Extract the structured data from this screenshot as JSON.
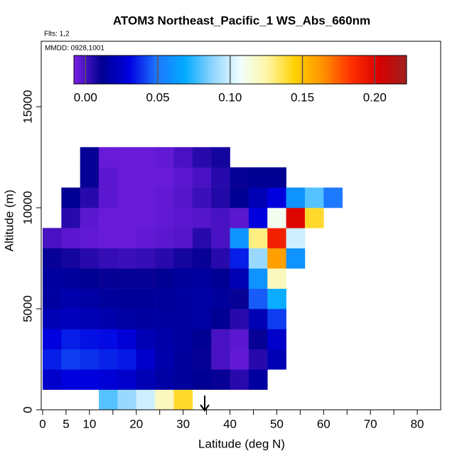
{
  "chart_data": {
    "type": "heatmap",
    "title": "ATOM3 Northeast_Pacific_1 WS_Abs_660nm",
    "subtitle": "Flts: 1,2",
    "annotation": "MMDD: 0928,1001",
    "x_label": "Latitude (deg N)",
    "y_label": "Altitude (m)",
    "xlim": [
      0,
      85
    ],
    "ylim": [
      0,
      18240
    ],
    "xticks": [
      0,
      5,
      10,
      20,
      30,
      40,
      50,
      60,
      70,
      80
    ],
    "xminor_ticks": [
      15,
      25,
      35,
      45,
      55,
      65,
      75
    ],
    "yticks": [
      0,
      5000,
      10000,
      15000
    ],
    "x_edges": [
      0,
      4,
      8,
      12,
      16,
      20,
      24,
      28,
      32,
      36,
      40,
      44,
      48,
      52,
      56,
      60,
      64
    ],
    "y_edges": [
      0,
      1000,
      2000,
      3000,
      4000,
      5000,
      6000,
      7000,
      8000,
      9000,
      10000,
      11000,
      12000,
      13000
    ],
    "z": [
      [
        null,
        null,
        null,
        0.08,
        0.09,
        0.1,
        0.12,
        0.14,
        null,
        null,
        null,
        null,
        null,
        null,
        null,
        null
      ],
      [
        0.025,
        0.03,
        0.03,
        0.028,
        0.025,
        0.02,
        0.016,
        0.014,
        0.012,
        0.01,
        0.005,
        0.015,
        null,
        null,
        null,
        null
      ],
      [
        0.035,
        0.04,
        0.038,
        0.036,
        0.034,
        0.025,
        0.018,
        0.014,
        0.01,
        0.0,
        -0.004,
        0.005,
        0.02,
        null,
        null,
        null
      ],
      [
        0.03,
        0.035,
        0.033,
        0.032,
        0.028,
        0.02,
        0.017,
        0.015,
        0.012,
        0.0,
        -0.003,
        0.01,
        0.025,
        null,
        null,
        null
      ],
      [
        0.02,
        0.022,
        0.02,
        0.018,
        0.016,
        0.015,
        0.015,
        0.015,
        0.016,
        0.012,
        0.005,
        0.02,
        0.04,
        null,
        null,
        null
      ],
      [
        0.015,
        0.018,
        0.016,
        0.014,
        0.013,
        0.013,
        0.014,
        0.015,
        0.016,
        0.014,
        0.01,
        0.045,
        0.07,
        null,
        null,
        null
      ],
      [
        0.015,
        0.014,
        0.012,
        0.01,
        0.01,
        0.01,
        0.012,
        0.014,
        0.015,
        0.012,
        0.02,
        0.06,
        0.12,
        null,
        null,
        null
      ],
      [
        0.01,
        0.008,
        0.005,
        0.003,
        0.002,
        0.003,
        0.005,
        0.008,
        0.01,
        0.005,
        0.035,
        0.09,
        0.16,
        0.06,
        null,
        null
      ],
      [
        0.0,
        -0.003,
        -0.004,
        -0.005,
        -0.005,
        -0.004,
        -0.003,
        -0.002,
        0.005,
        0.0,
        0.06,
        0.13,
        0.19,
        0.1,
        null,
        null
      ],
      [
        null,
        0.005,
        -0.003,
        -0.005,
        -0.005,
        -0.005,
        -0.004,
        -0.003,
        -0.002,
        0.0,
        -0.003,
        0.03,
        0.11,
        0.2,
        0.14,
        null
      ],
      [
        null,
        0.012,
        0.005,
        -0.003,
        -0.005,
        -0.005,
        -0.004,
        -0.002,
        0.002,
        0.006,
        0.012,
        0.02,
        0.03,
        0.06,
        0.08,
        0.05
      ],
      [
        null,
        null,
        0.01,
        -0.003,
        -0.005,
        -0.005,
        -0.005,
        -0.003,
        0.0,
        0.005,
        0.01,
        0.012,
        0.012,
        null,
        null,
        null
      ],
      [
        null,
        null,
        0.01,
        -0.005,
        -0.005,
        -0.005,
        -0.004,
        0.0,
        0.005,
        0.008,
        null,
        null,
        null,
        null,
        null,
        null
      ]
    ],
    "clim": [
      -0.008,
      0.222
    ],
    "cbar_ticks": [
      {
        "value": 0.0,
        "label": "0.00"
      },
      {
        "value": 0.05,
        "label": "0.05"
      },
      {
        "value": 0.1,
        "label": "0.10"
      },
      {
        "value": 0.15,
        "label": "0.15"
      },
      {
        "value": 0.2,
        "label": "0.20"
      }
    ],
    "colormap": [
      "#7b1fe6",
      "#000090",
      "#0000e0",
      "#1e78ff",
      "#00aaff",
      "#8fd4ff",
      "#f0ffff",
      "#fff5a0",
      "#ffd000",
      "#ff9000",
      "#ff3000",
      "#d80000",
      "#a02020"
    ]
  }
}
